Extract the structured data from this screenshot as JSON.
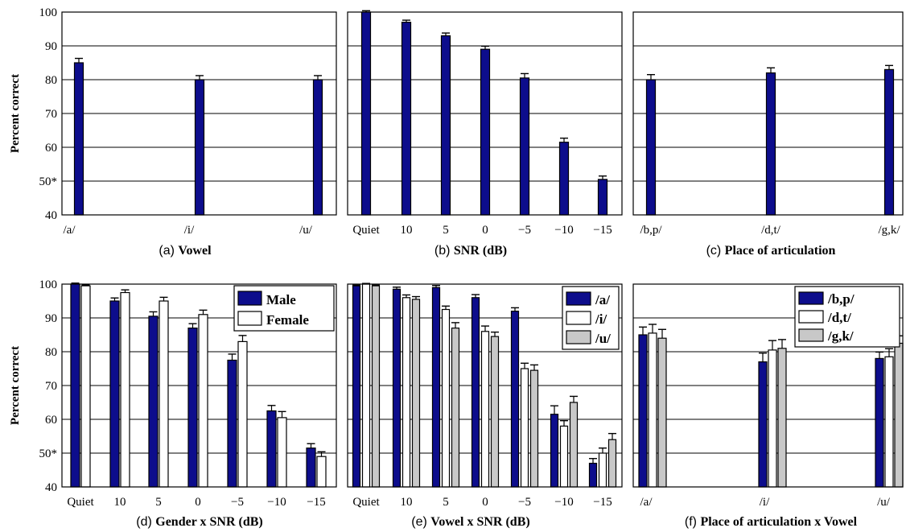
{
  "colors": {
    "Male": "#0d0d8c",
    "Female": "#ffffff",
    "/a/": "#0d0d8c",
    "/i/": "#ffffff",
    "/u/": "#c8c8c8",
    "/b,p/": "#0d0d8c",
    "/d,t/": "#ffffff",
    "/g,k/": "#c8c8c8"
  },
  "chart_data": [
    {
      "id": "a",
      "type": "bar",
      "caption_tag": "(a)",
      "caption": "Vowel",
      "ylabel": "Percent correct",
      "ylim": [
        40,
        100
      ],
      "yticks": [
        "40",
        "50*",
        "60",
        "70",
        "80",
        "90",
        "100"
      ],
      "grid": true,
      "legend": null,
      "categories": [
        "/a/",
        "/i/",
        "/u/"
      ],
      "series": [
        {
          "values": [
            85,
            80,
            80
          ],
          "err": [
            1.3,
            1.2,
            1.2
          ]
        }
      ]
    },
    {
      "id": "b",
      "type": "bar",
      "caption_tag": "(b)",
      "caption": "SNR (dB)",
      "ylabel": "",
      "ylim": [
        40,
        100
      ],
      "yticks": [],
      "grid": true,
      "legend": null,
      "categories": [
        "Quiet",
        "10",
        "5",
        "0",
        "−5",
        "−10",
        "−15"
      ],
      "series": [
        {
          "values": [
            100,
            97,
            93,
            89,
            80.5,
            61.5,
            50.5
          ],
          "err": [
            0.4,
            0.6,
            0.8,
            0.9,
            1.3,
            1.2,
            1.0
          ]
        }
      ]
    },
    {
      "id": "c",
      "type": "bar",
      "caption_tag": "(c)",
      "caption": "Place of articulation",
      "ylabel": "",
      "ylim": [
        40,
        100
      ],
      "yticks": [],
      "grid": true,
      "legend": null,
      "categories": [
        "/b,p/",
        "/d,t/",
        "/g,k/"
      ],
      "series": [
        {
          "values": [
            80,
            82,
            83
          ],
          "err": [
            1.5,
            1.5,
            1.2
          ]
        }
      ]
    },
    {
      "id": "d",
      "type": "bar",
      "caption_tag": "(d)",
      "caption": "Gender x SNR (dB)",
      "ylabel": "Percent correct",
      "ylim": [
        40,
        100
      ],
      "yticks": [
        "40",
        "50*",
        "60",
        "70",
        "80",
        "90",
        "100"
      ],
      "grid": true,
      "legend": "top-right",
      "categories": [
        "Quiet",
        "10",
        "5",
        "0",
        "−5",
        "−10",
        "−15"
      ],
      "series": [
        {
          "name": "Male",
          "values": [
            100,
            95,
            90.5,
            87,
            77.5,
            62.5,
            51.5
          ],
          "err": [
            0.3,
            0.9,
            1.3,
            1.3,
            1.8,
            1.6,
            1.3
          ]
        },
        {
          "name": "Female",
          "values": [
            99.5,
            97.5,
            95,
            91,
            83,
            60.5,
            49
          ],
          "err": [
            0.3,
            0.8,
            1.1,
            1.3,
            1.8,
            1.8,
            1.4
          ]
        }
      ]
    },
    {
      "id": "e",
      "type": "bar",
      "caption_tag": "(e)",
      "caption": "Vowel x SNR (dB)",
      "ylabel": "",
      "ylim": [
        40,
        100
      ],
      "yticks": [],
      "grid": true,
      "legend": "top-right",
      "categories": [
        "Quiet",
        "10",
        "5",
        "0",
        "−5",
        "−10",
        "−15"
      ],
      "series": [
        {
          "name": "/a/",
          "values": [
            99.5,
            98.5,
            99,
            96,
            92,
            61.5,
            47
          ],
          "err": [
            0.2,
            0.6,
            0.6,
            0.9,
            1.0,
            2.5,
            1.4
          ]
        },
        {
          "name": "/i/",
          "values": [
            100,
            96,
            92.5,
            86,
            75,
            58,
            50
          ],
          "err": [
            0.2,
            0.8,
            1.0,
            1.6,
            1.6,
            1.6,
            1.5
          ]
        },
        {
          "name": "/u/",
          "values": [
            99.5,
            95.5,
            87,
            84.5,
            74.5,
            65,
            54
          ],
          "err": [
            0.2,
            0.8,
            1.6,
            1.3,
            1.6,
            1.8,
            1.8
          ]
        }
      ]
    },
    {
      "id": "f",
      "type": "bar",
      "caption_tag": "(f)",
      "caption": "Place of articulation x Vowel",
      "ylabel": "",
      "ylim": [
        40,
        100
      ],
      "yticks": [],
      "grid": true,
      "legend": "top-right",
      "categories": [
        "/a/",
        "/i/",
        "/u/"
      ],
      "series": [
        {
          "name": "/b,p/",
          "values": [
            85,
            77,
            78
          ],
          "err": [
            2.3,
            2.6,
            1.9
          ]
        },
        {
          "name": "/d,t/",
          "values": [
            85.5,
            80.5,
            78.5
          ],
          "err": [
            2.6,
            2.8,
            2.4
          ]
        },
        {
          "name": "/g,k/",
          "values": [
            84,
            81,
            82.5
          ],
          "err": [
            2.6,
            2.6,
            2.2
          ]
        }
      ]
    }
  ]
}
